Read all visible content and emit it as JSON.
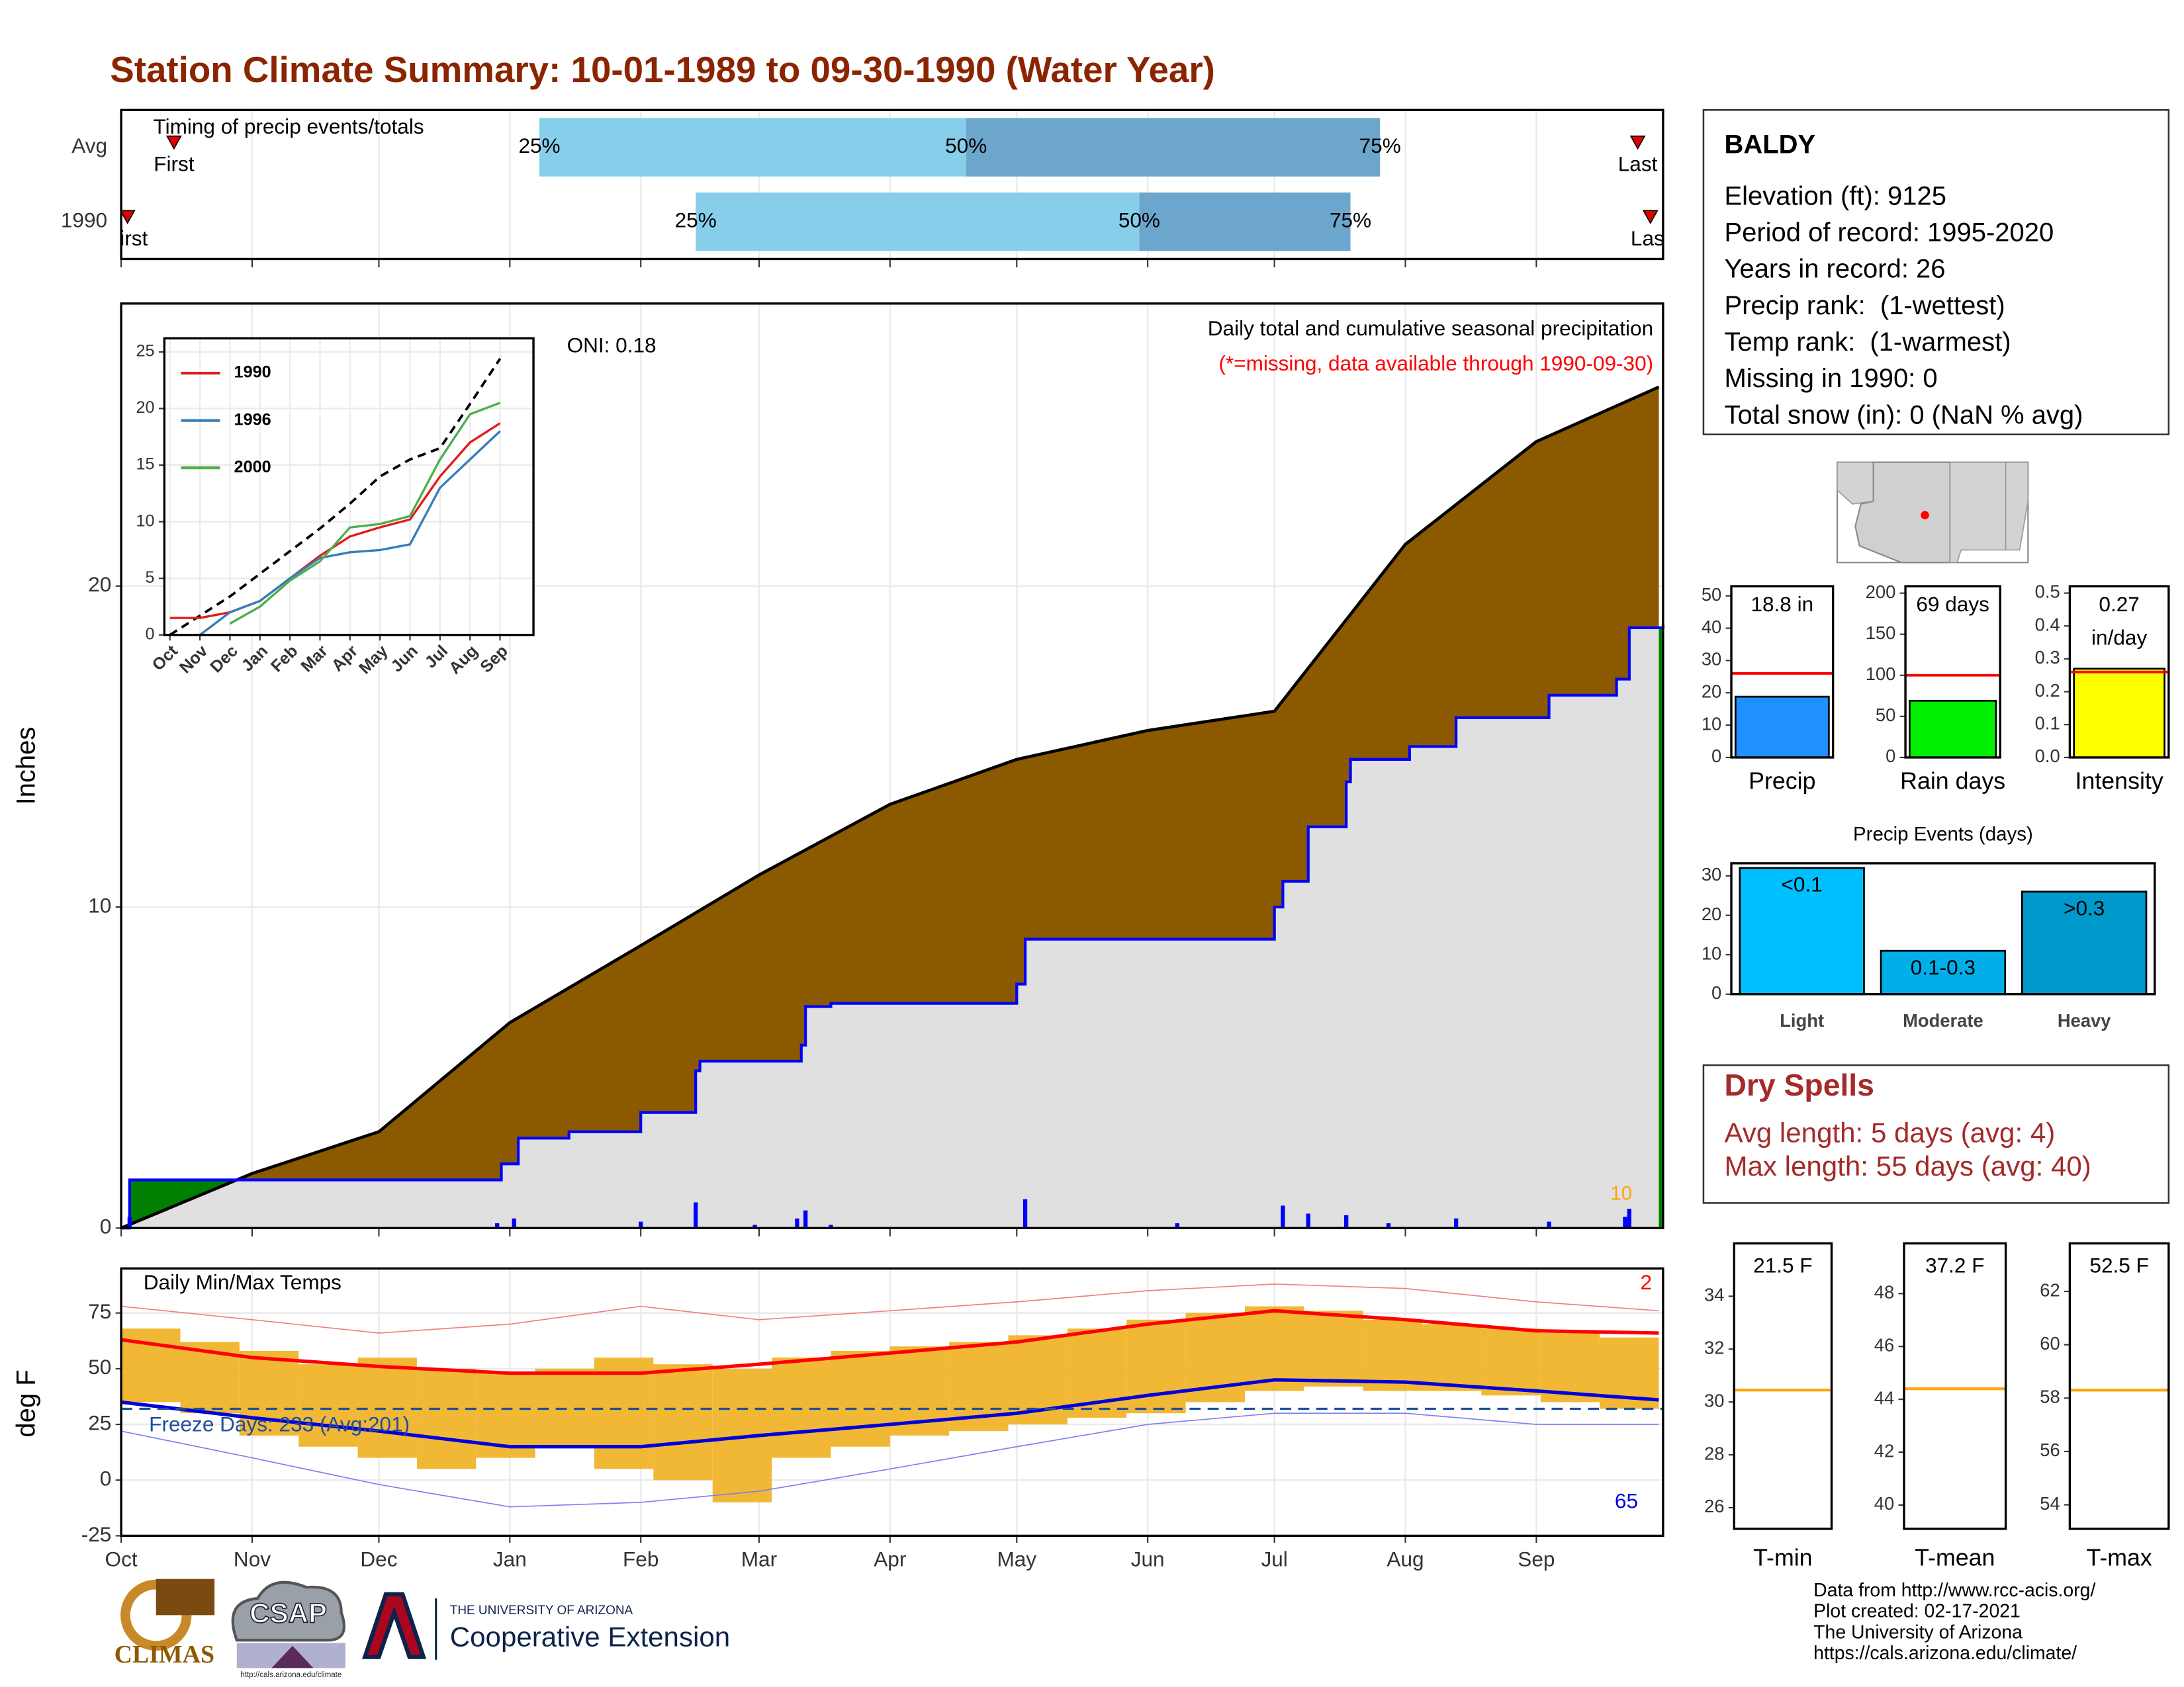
{
  "title": "Station Climate Summary: 10-01-1989 to 09-30-1990 (Water Year)",
  "chart_data": [
    {
      "type": "timeline",
      "title": "Timing of precip events/totals",
      "categories": [
        "Avg",
        "1990"
      ],
      "xlim": [
        0,
        365
      ],
      "first": [
        12.5,
        1.5
      ],
      "q25": [
        99,
        136
      ],
      "q50": [
        200,
        241
      ],
      "q75": [
        298,
        291
      ],
      "last": [
        359,
        362
      ],
      "first_label": "First",
      "last_label": "Last",
      "q_labels": [
        "25%",
        "50%",
        "75%"
      ],
      "colors": [
        "#87ceeb",
        "#6ca6cd"
      ],
      "marker_color": "#e00000"
    },
    {
      "type": "area",
      "title": "Daily total and cumulative seasonal precipitation",
      "subtitle": "(*=missing, data available through 1990-09-30)",
      "annotation": "ONI: 0.18",
      "count_label": "10",
      "y_label": "Inches",
      "xlim": [
        0,
        365
      ],
      "ylim": [
        0,
        28.8
      ],
      "xticks": [
        {
          "value": 0,
          "label": "Oct"
        },
        {
          "value": 31,
          "label": "Nov"
        },
        {
          "value": 61,
          "label": "Dec"
        },
        {
          "value": 92,
          "label": "Jan"
        },
        {
          "value": 123,
          "label": "Feb"
        },
        {
          "value": 151,
          "label": "Mar"
        },
        {
          "value": 182,
          "label": "Apr"
        },
        {
          "value": 212,
          "label": "May"
        },
        {
          "value": 243,
          "label": "Jun"
        },
        {
          "value": 273,
          "label": "Jul"
        },
        {
          "value": 304,
          "label": "Aug"
        },
        {
          "value": 335,
          "label": "Sep"
        }
      ],
      "yticks": [
        0,
        10,
        20
      ],
      "grid": true,
      "average": {
        "x": [
          0,
          31,
          61,
          92,
          123,
          151,
          182,
          212,
          243,
          273,
          304,
          335,
          364
        ],
        "values": [
          0,
          1.7,
          3.0,
          6.4,
          8.8,
          11.0,
          13.2,
          14.6,
          15.5,
          16.1,
          21.3,
          24.5,
          26.2
        ],
        "color": "#8b5a00"
      },
      "current": {
        "x": [
          0,
          2,
          90,
          94,
          106,
          123,
          136,
          137,
          161,
          162,
          168,
          212,
          214,
          273,
          275,
          281,
          290,
          291,
          305,
          316,
          338,
          354,
          357,
          365
        ],
        "values": [
          0,
          1.5,
          2.0,
          2.8,
          3.0,
          3.6,
          4.9,
          5.2,
          5.7,
          6.9,
          7.0,
          7.6,
          9.0,
          10.0,
          10.8,
          12.5,
          13.9,
          14.6,
          15.0,
          15.9,
          16.6,
          17.1,
          18.7,
          18.8
        ],
        "color": "#0000ff",
        "above_color": "#008000",
        "below_color": "#e0e0e0"
      },
      "daily": {
        "x": [
          2,
          89,
          93,
          123,
          136,
          150,
          160,
          162,
          168,
          214,
          250,
          275,
          281,
          290,
          300,
          316,
          338,
          356,
          357
        ],
        "values": [
          0.35,
          0.15,
          0.3,
          0.2,
          0.8,
          0.1,
          0.3,
          0.55,
          0.1,
          0.9,
          0.15,
          0.7,
          0.45,
          0.4,
          0.15,
          0.3,
          0.2,
          0.35,
          0.6
        ],
        "color": "#0000ff"
      }
    },
    {
      "type": "line",
      "categories": [
        "Oct",
        "Nov",
        "Dec",
        "Jan",
        "Feb",
        "Mar",
        "Apr",
        "May",
        "Jun",
        "Jul",
        "Aug",
        "Sep"
      ],
      "ylim": [
        0,
        26.2
      ],
      "yticks": [
        0,
        5,
        10,
        15,
        20,
        25
      ],
      "grid": true,
      "series": [
        {
          "color": "#000000",
          "dashed": true,
          "values": [
            0,
            1.7,
            3.4,
            5.4,
            7.4,
            9.4,
            11.6,
            14.0,
            15.5,
            16.5,
            20.4,
            24.4
          ]
        },
        {
          "name": "1990",
          "color": "#e41a1c",
          "values": [
            1.5,
            1.5,
            2.0,
            3.0,
            5.0,
            7.0,
            8.7,
            9.5,
            10.2,
            14.0,
            17.0,
            18.7
          ]
        },
        {
          "name": "1996",
          "color": "#377eb8",
          "values": [
            null,
            0,
            2.0,
            3.0,
            5.0,
            6.8,
            7.3,
            7.5,
            8.0,
            13.0,
            15.5,
            18.0
          ]
        },
        {
          "name": "2000",
          "color": "#4daf4a",
          "values": [
            null,
            null,
            1.0,
            2.5,
            4.8,
            6.5,
            9.5,
            9.8,
            10.5,
            15.5,
            19.5,
            20.5
          ]
        }
      ]
    },
    {
      "type": "range",
      "title": "Daily Min/Max Temps",
      "y_label": "deg F",
      "freeze_label": "Freeze Days: 233 (Avg:201)",
      "max_count": "2",
      "min_count": "65",
      "xlim": [
        0,
        365
      ],
      "ylim": [
        -25,
        95
      ],
      "yticks": [
        -25,
        0,
        25,
        50,
        75
      ],
      "grid": true,
      "freeze": 32,
      "xticks": [
        {
          "value": 0,
          "label": "Oct"
        },
        {
          "value": 31,
          "label": "Nov"
        },
        {
          "value": 61,
          "label": "Dec"
        },
        {
          "value": 92,
          "label": "Jan"
        },
        {
          "value": 123,
          "label": "Feb"
        },
        {
          "value": 151,
          "label": "Mar"
        },
        {
          "value": 182,
          "label": "Apr"
        },
        {
          "value": 212,
          "label": "May"
        },
        {
          "value": 243,
          "label": "Jun"
        },
        {
          "value": 273,
          "label": "Jul"
        },
        {
          "value": 304,
          "label": "Aug"
        },
        {
          "value": 335,
          "label": "Sep"
        }
      ],
      "bars": {
        "x": [
          0,
          14,
          28,
          42,
          56,
          70,
          84,
          98,
          112,
          126,
          140,
          154,
          168,
          182,
          196,
          210,
          224,
          238,
          252,
          266,
          280,
          294,
          308,
          322,
          336,
          350
        ],
        "width": 14,
        "low": [
          35,
          30,
          20,
          15,
          10,
          5,
          10,
          15,
          5,
          0,
          -10,
          10,
          15,
          20,
          22,
          25,
          28,
          30,
          35,
          40,
          42,
          40,
          40,
          38,
          35,
          32
        ],
        "high": [
          68,
          62,
          58,
          52,
          55,
          50,
          48,
          50,
          55,
          52,
          50,
          55,
          58,
          60,
          62,
          65,
          68,
          72,
          75,
          78,
          76,
          72,
          70,
          68,
          66,
          64
        ],
        "color": "#f0b020"
      },
      "lines": [
        {
          "x": [
            0,
            31,
            61,
            92,
            123,
            151,
            182,
            212,
            243,
            273,
            304,
            335,
            364
          ],
          "values": [
            78,
            72,
            66,
            70,
            78,
            72,
            76,
            80,
            85,
            88,
            86,
            80,
            76
          ],
          "color": "#f08080",
          "width": 0.8
        },
        {
          "x": [
            0,
            31,
            61,
            92,
            123,
            151,
            182,
            212,
            243,
            273,
            304,
            335,
            364
          ],
          "values": [
            22,
            10,
            -2,
            -12,
            -10,
            -5,
            5,
            15,
            25,
            30,
            30,
            25,
            25
          ],
          "color": "#8080f0",
          "width": 0.8
        },
        {
          "x": [
            0,
            31,
            61,
            92,
            123,
            151,
            182,
            212,
            243,
            273,
            304,
            335,
            364
          ],
          "values": [
            63,
            55,
            51,
            48,
            48,
            52,
            57,
            62,
            70,
            76,
            72,
            67,
            66
          ],
          "color": "#ff0000",
          "width": 2.5
        },
        {
          "x": [
            0,
            31,
            61,
            92,
            123,
            151,
            182,
            212,
            243,
            273,
            304,
            335,
            364
          ],
          "values": [
            35,
            28,
            22,
            15,
            15,
            20,
            25,
            30,
            38,
            45,
            44,
            40,
            36
          ],
          "color": "#0000dd",
          "width": 2.5
        }
      ],
      "freeze_color": "#1f4e9a",
      "max_color": "#ff0000",
      "min_color": "#0000dd"
    },
    {
      "type": "bar",
      "categories": [
        "Precip"
      ],
      "values": [
        18.8
      ],
      "value_labels": [
        "18.8 in"
      ],
      "avg": 26,
      "ylim": [
        0,
        53
      ],
      "yticks": [
        0,
        10,
        20,
        30,
        40,
        50
      ],
      "colors": [
        "#1e90ff"
      ],
      "avg_color": "#ff0000"
    },
    {
      "type": "bar",
      "categories": [
        "Rain days"
      ],
      "values": [
        69
      ],
      "value_labels": [
        "69 days"
      ],
      "avg": 100,
      "ylim": [
        0,
        208.5
      ],
      "yticks": [
        0,
        50,
        100,
        150,
        200
      ],
      "colors": [
        "#00ee00"
      ],
      "avg_color": "#ff0000"
    },
    {
      "type": "bar",
      "categories": [
        "Intensity"
      ],
      "values": [
        0.27
      ],
      "value_labels": [
        "0.27 in/day"
      ],
      "avg": 0.26,
      "ylim": [
        0,
        0.521
      ],
      "yticks": [
        {
          "value": 0,
          "label": "0.0"
        },
        0.1,
        0.2,
        0.3,
        0.4,
        0.5
      ],
      "colors": [
        "#ffff00"
      ],
      "avg_color": "#ff0000"
    },
    {
      "type": "bar",
      "title": "Precip Events (days)",
      "categories": [
        "Light",
        "Moderate",
        "Heavy"
      ],
      "values": [
        32,
        11,
        26
      ],
      "value_labels": [
        "<0.1",
        "0.1-0.3",
        ">0.3"
      ],
      "ylim": [
        0,
        33.2
      ],
      "yticks": [
        0,
        10,
        20,
        30
      ],
      "colors": [
        "#00bfff",
        "#00afe8",
        "#0099cc"
      ]
    },
    {
      "type": "level",
      "label": "T-min",
      "caption": "21.5 F",
      "avg": 30.45,
      "ylim": [
        25.2,
        36.0
      ],
      "yticks": [
        26,
        28,
        30,
        32,
        34
      ],
      "color": "#ffa500"
    },
    {
      "type": "level",
      "label": "T-mean",
      "caption": "37.2 F",
      "avg": 44.4,
      "ylim": [
        39.1,
        49.9
      ],
      "yticks": [
        40,
        42,
        44,
        46,
        48
      ],
      "color": "#ffa500"
    },
    {
      "type": "level",
      "label": "T-max",
      "caption": "52.5 F",
      "avg": 58.3,
      "ylim": [
        53.1,
        63.8
      ],
      "yticks": [
        54,
        56,
        58,
        60,
        62
      ],
      "color": "#ffa500"
    }
  ],
  "station": {
    "name": "BALDY",
    "lines": [
      "Elevation (ft): 9125",
      "Period of record: 1995-2020",
      "Years in record: 26",
      "Precip rank:  (1-wettest)",
      "Temp rank:  (1-warmest)",
      "Missing in 1990: 0",
      "Total snow (in): 0 (NaN % avg)"
    ]
  },
  "dry_spells": {
    "title": "Dry Spells",
    "lines": [
      "Avg length: 5 days (avg: 4)",
      "Max length: 55 days (avg: 40)"
    ]
  },
  "footer": {
    "credits": [
      "Data from http://www.rcc-acis.org/",
      "Plot created: 02-17-2021",
      "The University of Arizona",
      "https://cals.arizona.edu/climate/"
    ],
    "climas": "CLIMAS",
    "csap": "CSAP",
    "csap_url": "http://cals.arizona.edu/climate",
    "university": "THE UNIVERSITY OF ARIZONA",
    "extension": "Cooperative Extension"
  }
}
